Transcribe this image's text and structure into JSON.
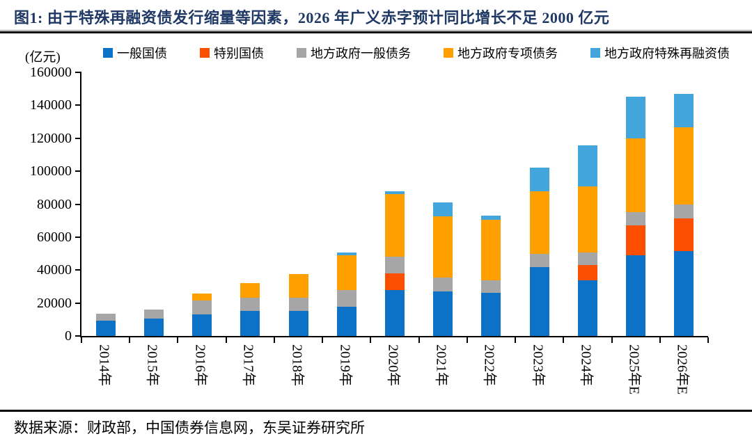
{
  "figure": {
    "title": "图1:  由于特殊再融资债发行缩量等因素，2026 年广义赤字预计同比增长不足 2000 亿元",
    "source": "数据来源：财政部，中国债券信息网，东吴证券研究所"
  },
  "chart_data": {
    "type": "bar",
    "stacked": true,
    "title": "",
    "unit_label": "(亿元)",
    "xlabel": "",
    "ylabel": "亿元",
    "ylim": [
      0,
      160000
    ],
    "yticks": [
      0,
      20000,
      40000,
      60000,
      80000,
      100000,
      120000,
      140000,
      160000
    ],
    "grid": false,
    "legend_position": "top",
    "categories": [
      "2014年",
      "2015年",
      "2016年",
      "2017年",
      "2018年",
      "2019年",
      "2020年",
      "2021年",
      "2022年",
      "2023年",
      "2024年",
      "2025年E",
      "2026年E"
    ],
    "series": [
      {
        "name": "一般国债",
        "color": "#0B72C8",
        "values": [
          9500,
          10500,
          13200,
          15000,
          15100,
          17800,
          28000,
          27100,
          26000,
          41800,
          33700,
          49000,
          51500
        ]
      },
      {
        "name": "特别国债",
        "color": "#FC5000",
        "values": [
          0,
          0,
          0,
          0,
          0,
          0,
          10000,
          0,
          0,
          0,
          9500,
          18000,
          20000
        ]
      },
      {
        "name": "地方政府一般债务",
        "color": "#A6A6A6",
        "values": [
          4100,
          5500,
          8200,
          8200,
          8000,
          9900,
          10200,
          8200,
          7900,
          8000,
          7500,
          8100,
          8300
        ]
      },
      {
        "name": "地方政府专项债务",
        "color": "#FFA000",
        "values": [
          0,
          0,
          4500,
          8700,
          14500,
          21100,
          38000,
          37300,
          36800,
          38100,
          39900,
          44700,
          46700
        ]
      },
      {
        "name": "地方政府特殊再融资债",
        "color": "#42A5DB",
        "values": [
          0,
          0,
          0,
          0,
          0,
          1900,
          1500,
          8400,
          2500,
          14100,
          25000,
          25400,
          20600
        ]
      }
    ]
  }
}
